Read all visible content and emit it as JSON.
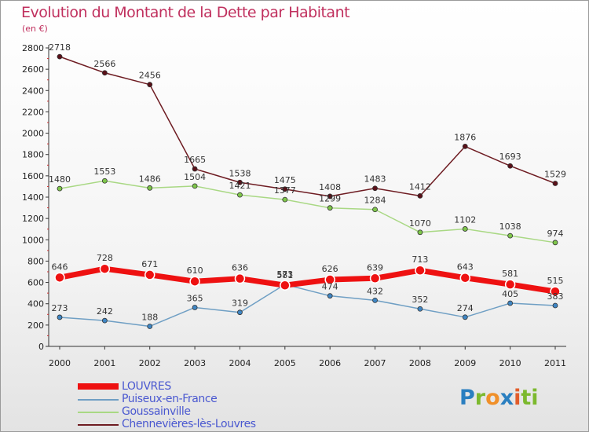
{
  "title": "Evolution du Montant de la Dette par Habitant",
  "unit": "(en €)",
  "logo": {
    "text": "Proxiti",
    "colors": [
      "#2a7fc0",
      "#7cb92e",
      "#f0902a",
      "#2a7fc0",
      "#e25c2a",
      "#7cb92e"
    ]
  },
  "chart_data": {
    "type": "line",
    "title": "Evolution du Montant de la Dette par Habitant",
    "subtitle": "(en €)",
    "xlabel": "",
    "ylabel": "",
    "x": [
      "2000",
      "2001",
      "2002",
      "2003",
      "2004",
      "2005",
      "2006",
      "2007",
      "2008",
      "2009",
      "2010",
      "2011"
    ],
    "ylim": [
      0,
      2800
    ],
    "yticks": [
      0,
      200,
      400,
      600,
      800,
      1000,
      1200,
      1400,
      1600,
      1800,
      2000,
      2200,
      2400,
      2600,
      2800
    ],
    "grid": false,
    "legend_position": "bottom-left",
    "series": [
      {
        "name": "Chennevières-lès-Louvres",
        "color": "#6e1c22",
        "marker_color": "#5a1018",
        "values": [
          2718,
          2566,
          2456,
          1665,
          1538,
          1475,
          1408,
          1483,
          1412,
          1876,
          1693,
          1529
        ]
      },
      {
        "name": "Goussainville",
        "color": "#a9d884",
        "marker_color": "#7ec64a",
        "values": [
          1480,
          1553,
          1486,
          1504,
          1421,
          1377,
          1299,
          1284,
          1070,
          1102,
          1038,
          974
        ]
      },
      {
        "name": "Puiseux-en-France",
        "color": "#6f9fc4",
        "marker_color": "#3f86c4",
        "values": [
          273,
          242,
          188,
          365,
          319,
          581,
          474,
          432,
          352,
          274,
          405,
          383
        ]
      },
      {
        "name": "LOUVRES",
        "color": "#ee1111",
        "marker_color": "#ee1111",
        "values": [
          646,
          728,
          671,
          610,
          636,
          573,
          626,
          639,
          713,
          643,
          581,
          515
        ]
      }
    ],
    "legend_order": [
      "LOUVRES",
      "Puiseux-en-France",
      "Goussainville",
      "Chennevières-lès-Louvres"
    ]
  }
}
